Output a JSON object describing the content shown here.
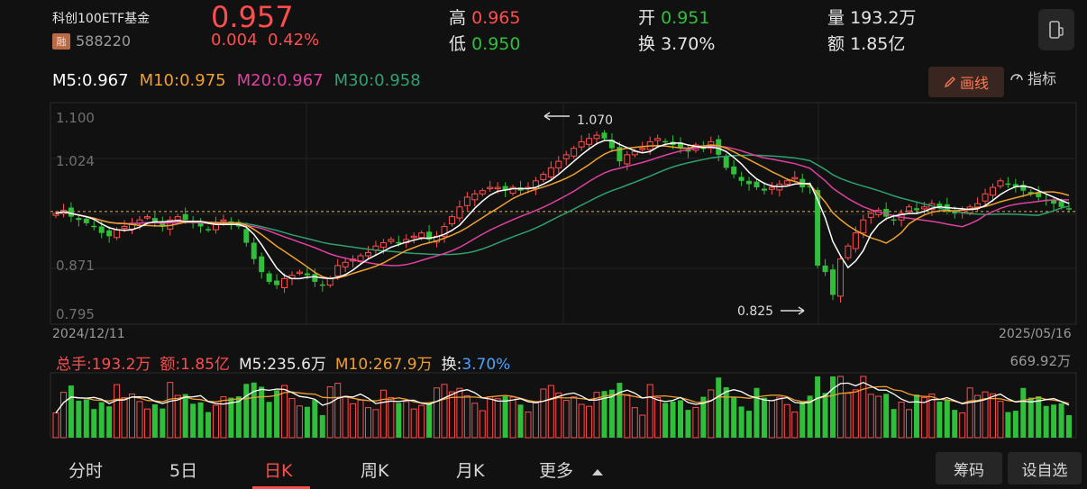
{
  "header": {
    "name": "科创100ETF基金",
    "rong_badge": "融",
    "code": "588220",
    "price": "0.957",
    "change": "0.004",
    "change_pct": "0.42%",
    "high_label": "高",
    "high": "0.965",
    "low_label": "低",
    "low": "0.950",
    "open_label": "开",
    "open": "0.951",
    "turnover_label": "换",
    "turnover": "3.70%",
    "volume_label": "量",
    "volume": "193.2万",
    "amount_label": "额",
    "amount": "1.85亿"
  },
  "ma": {
    "m5": "M5:0.967",
    "m10": "M10:0.975",
    "m20": "M20:0.967",
    "m30": "M30:0.958",
    "colors": {
      "m5": "#ffffff",
      "m10": "#f0a030",
      "m20": "#e040a0",
      "m30": "#30a070"
    }
  },
  "toolbar": {
    "draw_label": "画线",
    "indicator_label": "指标",
    "draw_icon": "pencil-icon",
    "indicator_icon": "gauge-icon"
  },
  "axis": {
    "y_ticks": [
      "1.100",
      "1.024",
      "0.871",
      "0.795"
    ],
    "start_date": "2024/12/11",
    "end_date": "2025/05/16",
    "high_mark": "1.070",
    "low_mark": "0.825"
  },
  "volume": {
    "total_label": "总手:193.2万",
    "amount_label": "额:1.85亿",
    "m5_label": "M5:235.6万",
    "m10_label": "M10:267.9万",
    "turnover_prefix": "换:",
    "turnover_value": "3.70%",
    "max_label": "669.92万"
  },
  "tabs": [
    {
      "label": "分时"
    },
    {
      "label": "5日"
    },
    {
      "label": "日K"
    },
    {
      "label": "周K"
    },
    {
      "label": "月K"
    },
    {
      "label": "更多"
    }
  ],
  "active_tab": "日K",
  "buttons": {
    "chips": "筹码",
    "watchlist": "设自选"
  },
  "colors": {
    "up": "#ff4d4d",
    "down": "#2fbf3a",
    "accent": "#ff4d4d",
    "background": "#111111"
  },
  "chart_data": {
    "type": "candlestick",
    "ylim": [
      0.78,
      1.12
    ],
    "y_ticks": [
      1.1,
      1.024,
      0.871,
      0.795
    ],
    "reference_price": 0.953,
    "close": [
      0.95,
      0.955,
      0.945,
      0.94,
      0.935,
      0.93,
      0.92,
      0.915,
      0.925,
      0.93,
      0.935,
      0.94,
      0.945,
      0.935,
      0.93,
      0.94,
      0.945,
      0.94,
      0.935,
      0.93,
      0.925,
      0.935,
      0.94,
      0.935,
      0.93,
      0.905,
      0.88,
      0.86,
      0.845,
      0.84,
      0.85,
      0.855,
      0.86,
      0.855,
      0.845,
      0.84,
      0.85,
      0.87,
      0.875,
      0.88,
      0.885,
      0.89,
      0.9,
      0.905,
      0.91,
      0.905,
      0.91,
      0.915,
      0.92,
      0.91,
      0.915,
      0.93,
      0.945,
      0.96,
      0.975,
      0.98,
      0.985,
      0.99,
      0.99,
      0.985,
      0.99,
      0.985,
      0.99,
      1.0,
      1.01,
      1.02,
      1.03,
      1.04,
      1.05,
      1.06,
      1.065,
      1.07,
      1.065,
      1.05,
      1.03,
      1.04,
      1.045,
      1.05,
      1.06,
      1.065,
      1.06,
      1.055,
      1.05,
      1.045,
      1.055,
      1.05,
      1.06,
      1.04,
      1.02,
      1.01,
      1.0,
      0.995,
      0.99,
      0.985,
      0.99,
      0.995,
      1.0,
      1.005,
      0.99,
      0.99,
      0.87,
      0.86,
      0.825,
      0.88,
      0.9,
      0.92,
      0.94,
      0.95,
      0.955,
      0.945,
      0.94,
      0.95,
      0.96,
      0.955,
      0.96,
      0.965,
      0.96,
      0.955,
      0.95,
      0.955,
      0.96,
      0.965,
      0.98,
      0.99,
      1.0,
      0.995,
      0.99,
      0.985,
      0.98,
      0.975,
      0.97,
      0.965,
      0.96,
      0.957
    ]
  }
}
